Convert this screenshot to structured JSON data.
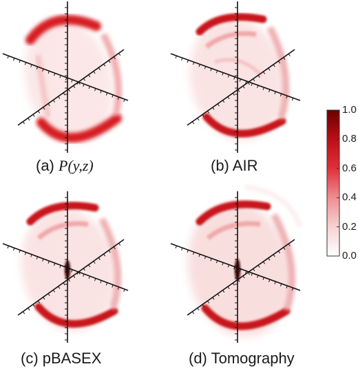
{
  "panels": [
    {
      "id": "a",
      "caption_prefix": "(a) ",
      "caption_math": "P(y,z)",
      "caption_text": ""
    },
    {
      "id": "b",
      "caption_prefix": "(b) ",
      "caption_math": "",
      "caption_text": "AIR"
    },
    {
      "id": "c",
      "caption_prefix": "(c) ",
      "caption_math": "",
      "caption_text": "pBASEX"
    },
    {
      "id": "d",
      "caption_prefix": "(d) ",
      "caption_math": "",
      "caption_text": "Tomography"
    }
  ],
  "colorbar": {
    "ticks": [
      "1.0",
      "0.8",
      "0.6",
      "0.4",
      "0.2",
      "0.0"
    ],
    "color_low": "#ffffff",
    "color_high": "#6a0000",
    "color_mid": "#e0202a"
  },
  "colors": {
    "intensity": "#d8141e",
    "axis": "#111111"
  }
}
